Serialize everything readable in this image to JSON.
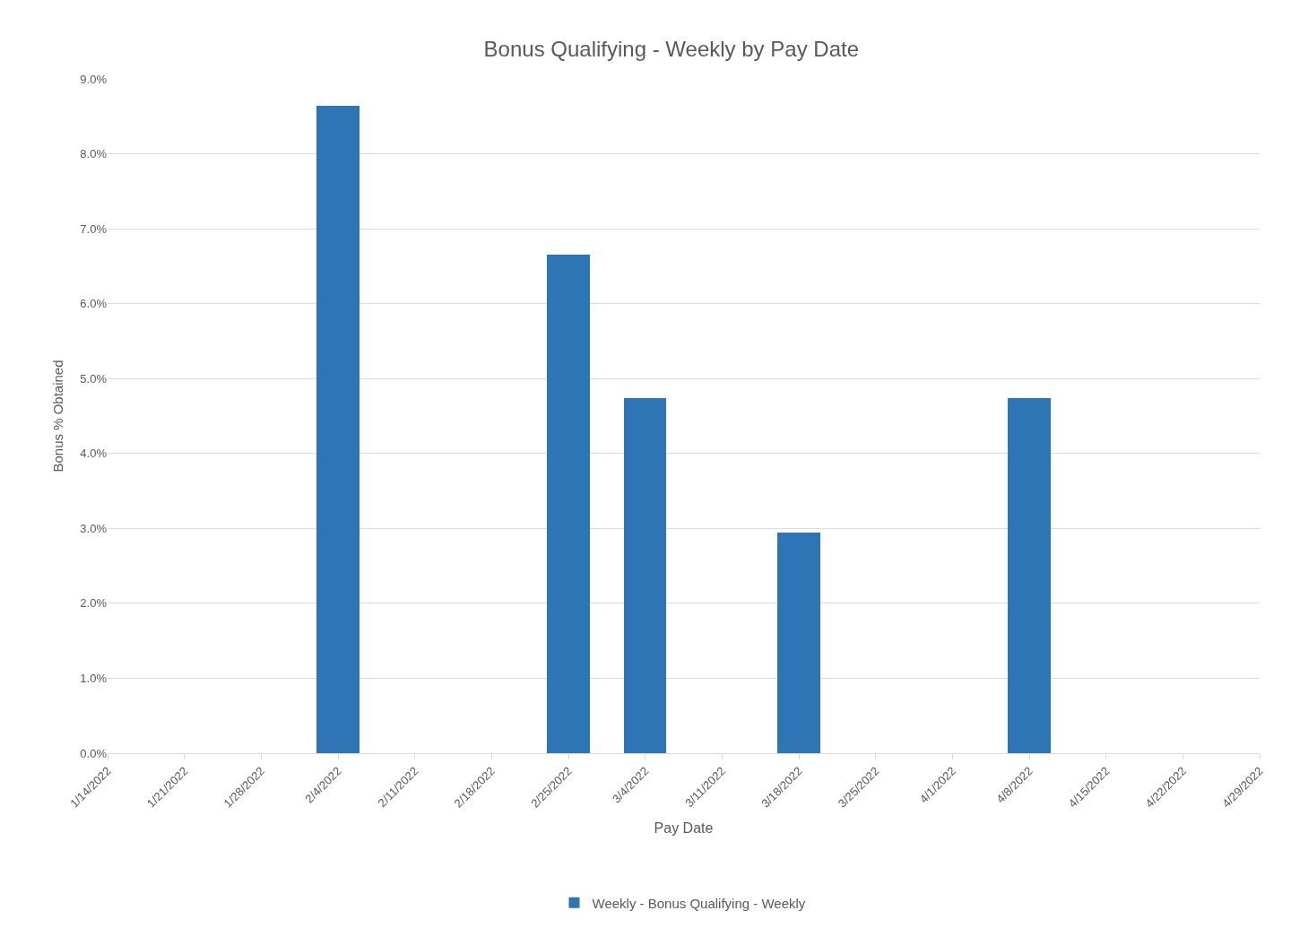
{
  "chart_data": {
    "type": "bar",
    "title": "Bonus Qualifying - Weekly by Pay Date",
    "xlabel": "Pay Date",
    "ylabel": "Bonus % Obtained",
    "x": [
      "2022-02-04",
      "2022-02-25",
      "2022-03-04",
      "2022-03-18",
      "2022-04-08"
    ],
    "series": [
      {
        "name": "Weekly - Bonus Qualifying - Weekly",
        "color": "#2e75b6",
        "values": [
          8.64,
          6.65,
          4.74,
          2.95,
          4.74
        ]
      }
    ],
    "xlim": [
      "2022-01-14",
      "2022-04-29"
    ],
    "xticks": [
      {
        "value": "2022-01-14",
        "label": "1/14/2022"
      },
      {
        "value": "2022-01-21",
        "label": "1/21/2022"
      },
      {
        "value": "2022-01-28",
        "label": "1/28/2022"
      },
      {
        "value": "2022-02-04",
        "label": "2/4/2022"
      },
      {
        "value": "2022-02-11",
        "label": "2/11/2022"
      },
      {
        "value": "2022-02-18",
        "label": "2/18/2022"
      },
      {
        "value": "2022-02-25",
        "label": "2/25/2022"
      },
      {
        "value": "2022-03-04",
        "label": "3/4/2022"
      },
      {
        "value": "2022-03-11",
        "label": "3/11/2022"
      },
      {
        "value": "2022-03-18",
        "label": "3/18/2022"
      },
      {
        "value": "2022-03-25",
        "label": "3/25/2022"
      },
      {
        "value": "2022-04-01",
        "label": "4/1/2022"
      },
      {
        "value": "2022-04-08",
        "label": "4/8/2022"
      },
      {
        "value": "2022-04-15",
        "label": "4/15/2022"
      },
      {
        "value": "2022-04-22",
        "label": "4/22/2022"
      },
      {
        "value": "2022-04-29",
        "label": "4/29/2022"
      }
    ],
    "ylim": [
      0,
      9
    ],
    "yticks": [
      {
        "value": 0,
        "label": "0.0%"
      },
      {
        "value": 1,
        "label": "1.0%"
      },
      {
        "value": 2,
        "label": "2.0%"
      },
      {
        "value": 3,
        "label": "3.0%"
      },
      {
        "value": 4,
        "label": "4.0%"
      },
      {
        "value": 5,
        "label": "5.0%"
      },
      {
        "value": 6,
        "label": "6.0%"
      },
      {
        "value": 7,
        "label": "7.0%"
      },
      {
        "value": 8,
        "label": "8.0%"
      },
      {
        "value": 9,
        "label": "9.0%"
      }
    ],
    "grid": "y",
    "legend": "bottom"
  }
}
